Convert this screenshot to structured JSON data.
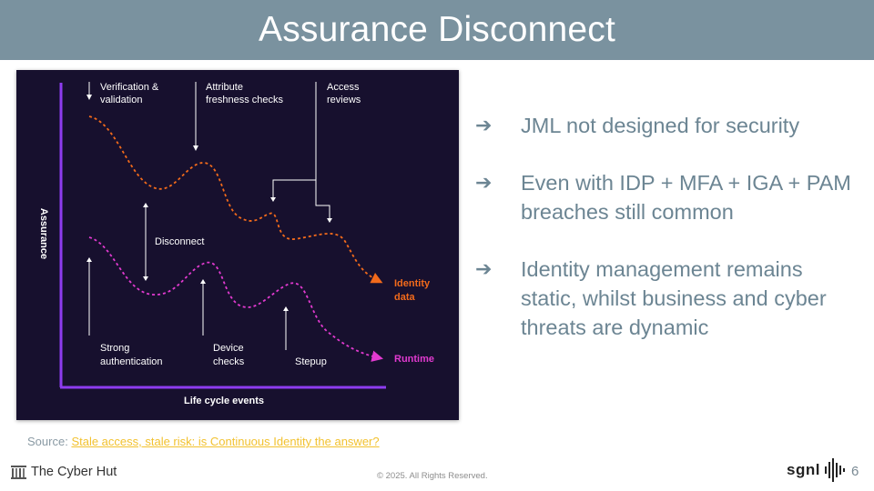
{
  "slide": {
    "title": "Assurance Disconnect",
    "page_number": "6"
  },
  "diagram": {
    "y_axis_label": "Assurance",
    "x_axis_label": "Life cycle events",
    "top_annotations": [
      {
        "line1": "Verification &",
        "line2": "validation"
      },
      {
        "line1": "Attribute",
        "line2": "freshness checks"
      },
      {
        "line1": "Access",
        "line2": "reviews"
      }
    ],
    "bottom_annotations": [
      {
        "line1": "Strong",
        "line2": "authentication"
      },
      {
        "line1": "Device",
        "line2": "checks"
      },
      {
        "line1": "Stepup",
        "line2": ""
      }
    ],
    "disconnect_label": "Disconnect",
    "series": [
      {
        "line1": "Identity",
        "line2": "data",
        "color": "#f26a1b"
      },
      {
        "line1": "Runtime",
        "line2": "",
        "color": "#e23ad0"
      }
    ],
    "colors": {
      "background": "#17102e",
      "axis": "#8e3cf0",
      "text": "#ffffff"
    }
  },
  "bullets": [
    {
      "icon": "arrow-right-icon",
      "text": "JML not designed for security"
    },
    {
      "icon": "arrow-right-icon",
      "text": "Even with IDP + MFA + IGA + PAM breaches still common"
    },
    {
      "icon": "arrow-right-icon",
      "text": "Identity management remains static, whilst business and cyber threats are dynamic"
    }
  ],
  "source": {
    "prefix": "Source:",
    "link_text": "Stale access, stale risk: is Continuous Identity the answer?"
  },
  "footer": {
    "brand": "The Cyber Hut",
    "copyright": "© 2025. All Rights Reserved.",
    "partner_logo": "sgnl"
  },
  "theme": {
    "title_bar": "#7a929f",
    "bullet_text": "#6c8593",
    "link": "#f2c230"
  }
}
